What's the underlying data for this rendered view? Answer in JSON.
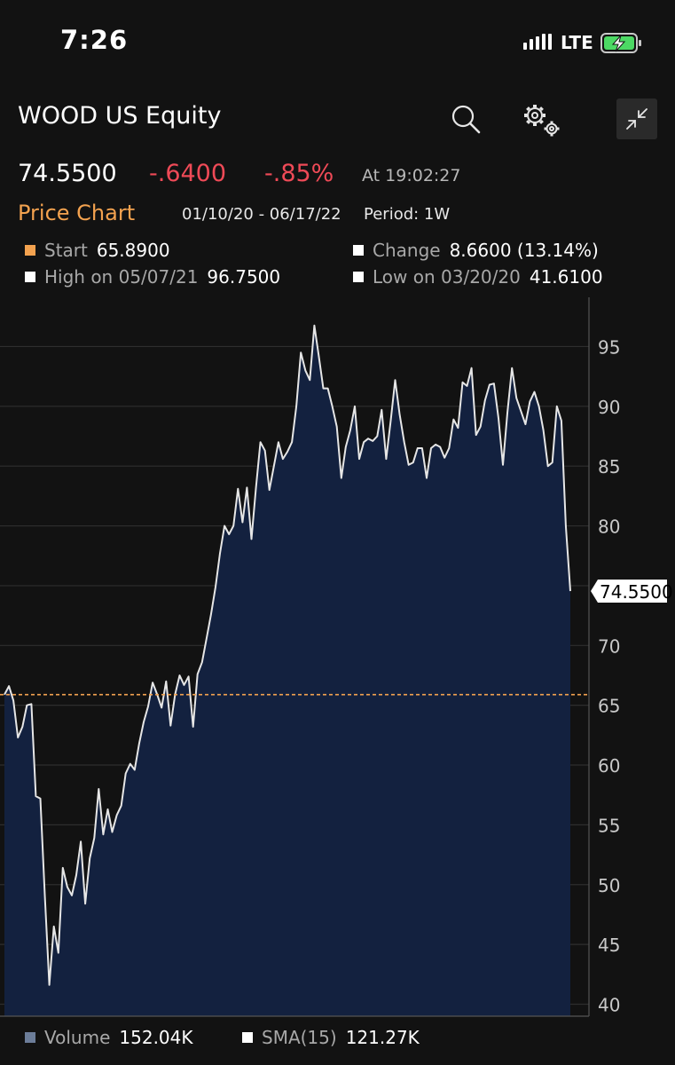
{
  "status_bar": {
    "time": "7:26",
    "network": "LTE",
    "icons": [
      "signal-bars-icon",
      "battery-charging-icon"
    ]
  },
  "header": {
    "ticker": "WOOD US Equity",
    "icons": [
      "search-icon",
      "settings-gears-icon",
      "collapse-icon"
    ]
  },
  "quote": {
    "last": "74.5500",
    "change": "-.6400",
    "percent": "-.85%",
    "time": "At 19:02:27",
    "change_color": "#ef4a57"
  },
  "chart_header": {
    "title": "Price Chart",
    "range": "01/10/20 - 06/17/22",
    "period": "Period: 1W",
    "title_color": "#f3a24f"
  },
  "stats": {
    "start_label": "Start",
    "start_value": "65.8900",
    "change_label": "Change",
    "change_value": "8.6600 (13.14%)",
    "high_label": "High on 05/07/21",
    "high_value": "96.7500",
    "low_label": "Low on 03/20/20",
    "low_value": "41.6100",
    "start_color": "#f3a24f"
  },
  "chart_data": {
    "type": "area",
    "xlabel": "",
    "ylabel": "",
    "x_range": [
      "01/10/20",
      "06/17/22"
    ],
    "period": "1W",
    "ylim": [
      39,
      98
    ],
    "yticks": [
      40,
      45,
      50,
      55,
      60,
      65,
      70,
      75,
      80,
      85,
      90,
      95
    ],
    "reference_line": {
      "value": 65.89,
      "style": "dashed",
      "color": "#f3a24f"
    },
    "last_value_label": "74.5500",
    "grid": "horizontal",
    "fill_color": "#13213f",
    "line_color": "#e6e6e6",
    "series": [
      {
        "values": [
          65.89,
          66.6,
          65.4,
          62.3,
          63.2,
          65.0,
          65.1,
          57.4,
          57.2,
          49.0,
          41.61,
          46.5,
          44.3,
          51.4,
          49.8,
          49.1,
          50.8,
          53.6,
          48.4,
          52.2,
          53.9,
          58.0,
          54.2,
          56.3,
          54.4,
          55.8,
          56.6,
          59.3,
          60.1,
          59.6,
          61.8,
          63.6,
          64.9,
          66.9,
          65.9,
          64.8,
          67.0,
          63.3,
          65.9,
          67.5,
          66.7,
          67.4,
          63.2,
          67.6,
          68.6,
          70.6,
          72.6,
          74.9,
          77.7,
          80.0,
          79.3,
          80.0,
          83.1,
          80.3,
          83.2,
          78.9,
          83.2,
          87.0,
          86.3,
          83.0,
          85.0,
          87.0,
          85.6,
          86.2,
          87.0,
          90.0,
          94.5,
          93.0,
          92.2,
          96.75,
          94.2,
          91.5,
          91.5,
          90.0,
          88.3,
          84.0,
          86.6,
          88.0,
          90.0,
          85.6,
          87.0,
          87.3,
          87.1,
          87.5,
          89.7,
          85.6,
          88.8,
          92.2,
          89.3,
          87.0,
          85.1,
          85.3,
          86.5,
          86.5,
          84.0,
          86.5,
          86.8,
          86.6,
          85.7,
          86.5,
          88.9,
          88.2,
          92.0,
          91.7,
          93.2,
          87.6,
          88.3,
          90.5,
          91.8,
          91.9,
          89.0,
          85.1,
          89.5,
          93.2,
          90.7,
          89.6,
          88.5,
          90.4,
          91.2,
          90.0,
          88.0,
          85.0,
          85.3,
          90.0,
          88.8,
          80.0,
          74.55
        ]
      }
    ]
  },
  "legend": {
    "volume_label": "Volume",
    "volume_value": "152.04K",
    "sma_label": "SMA(15)",
    "sma_value": "121.27K",
    "volume_color": "#6c7d99"
  }
}
